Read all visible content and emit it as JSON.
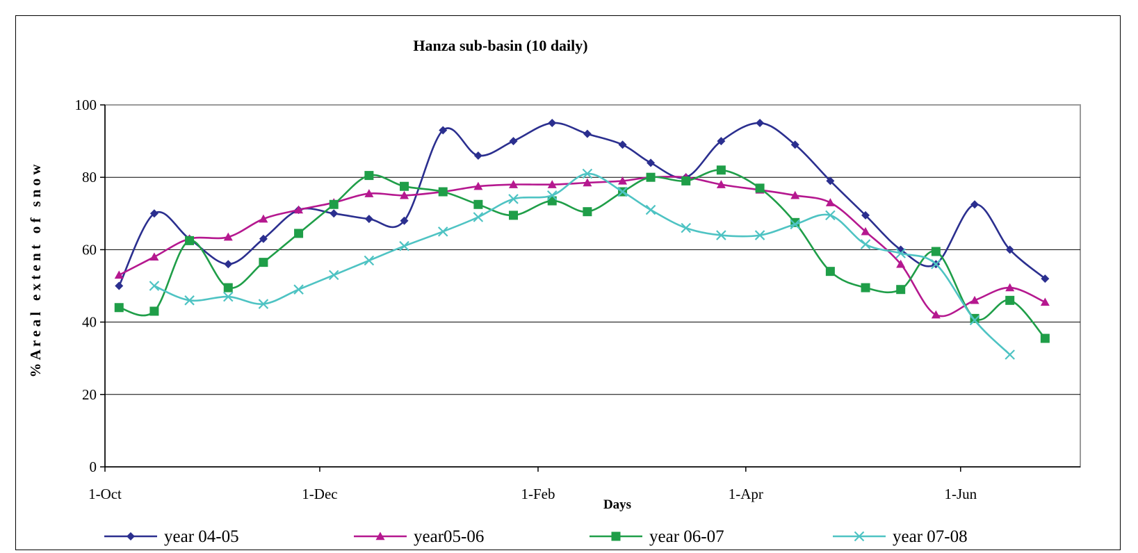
{
  "chart_data": {
    "type": "line",
    "title": "Hanza sub-basin (10 daily)",
    "xlabel": "Days",
    "ylabel": "% A r e a l   e x t e n t   o f   s n o w",
    "ylim": [
      0,
      100
    ],
    "yticks": [
      "0",
      "20",
      "40",
      "60",
      "80",
      "100"
    ],
    "xlim": [
      "2004-10-01",
      "2005-07-05"
    ],
    "xticks": [
      {
        "date": "2004-10-01",
        "label": "1-Oct"
      },
      {
        "date": "2004-12-01",
        "label": "1-Dec"
      },
      {
        "date": "2005-02-01",
        "label": "1-Feb"
      },
      {
        "date": "2005-04-01",
        "label": "1-Apr"
      },
      {
        "date": "2005-06-01",
        "label": "1-Jun"
      }
    ],
    "grid": "horizontal",
    "legend": "bottom",
    "series": [
      {
        "name": "year 04-05",
        "color": "#2B2F8F",
        "marker": "diamond",
        "x": [
          "2004-10-05",
          "2004-10-15",
          "2004-10-25",
          "2004-11-05",
          "2004-11-15",
          "2004-11-25",
          "2004-12-05",
          "2004-12-15",
          "2004-12-25",
          "2005-01-05",
          "2005-01-15",
          "2005-01-25",
          "2005-02-05",
          "2005-02-15",
          "2005-02-25",
          "2005-03-05",
          "2005-03-15",
          "2005-03-25",
          "2005-04-05",
          "2005-04-15",
          "2005-04-25",
          "2005-05-05",
          "2005-05-15",
          "2005-05-25",
          "2005-06-05",
          "2005-06-15",
          "2005-06-25"
        ],
        "y": [
          50,
          70,
          63,
          56,
          63,
          71,
          70,
          68.5,
          68,
          93,
          86,
          90,
          95,
          92,
          89,
          84,
          80,
          90,
          95,
          89,
          79,
          69.5,
          60,
          56,
          72.5,
          60,
          52
        ]
      },
      {
        "name": "year05-06",
        "color": "#B5188F",
        "marker": "triangle",
        "x": [
          "2004-10-05",
          "2004-10-15",
          "2004-10-25",
          "2004-11-05",
          "2004-11-15",
          "2004-11-25",
          "2004-12-05",
          "2004-12-15",
          "2004-12-25",
          "2005-01-05",
          "2005-01-15",
          "2005-01-25",
          "2005-02-05",
          "2005-02-15",
          "2005-02-25",
          "2005-03-05",
          "2005-03-15",
          "2005-03-25",
          "2005-04-05",
          "2005-04-15",
          "2005-04-25",
          "2005-05-05",
          "2005-05-15",
          "2005-05-25",
          "2005-06-05",
          "2005-06-15",
          "2005-06-25"
        ],
        "y": [
          53,
          58,
          63,
          63.5,
          68.5,
          71,
          73,
          75.5,
          75,
          76,
          77.5,
          78,
          78,
          78.5,
          79,
          80,
          80,
          78,
          76.5,
          75,
          73,
          65,
          56,
          42,
          46,
          49.5,
          45.5
        ]
      },
      {
        "name": "year 06-07",
        "color": "#1F9E48",
        "marker": "square",
        "x": [
          "2004-10-05",
          "2004-10-15",
          "2004-10-25",
          "2004-11-05",
          "2004-11-15",
          "2004-11-25",
          "2004-12-05",
          "2004-12-15",
          "2004-12-25",
          "2005-01-05",
          "2005-01-15",
          "2005-01-25",
          "2005-02-05",
          "2005-02-15",
          "2005-02-25",
          "2005-03-05",
          "2005-03-15",
          "2005-03-25",
          "2005-04-05",
          "2005-04-15",
          "2005-04-25",
          "2005-05-05",
          "2005-05-15",
          "2005-05-25",
          "2005-06-05",
          "2005-06-15",
          "2005-06-25"
        ],
        "y": [
          44,
          43,
          62.5,
          49.5,
          56.5,
          64.5,
          72.5,
          80.5,
          77.5,
          76,
          72.5,
          69.5,
          73.5,
          70.5,
          76,
          80,
          79,
          82,
          77,
          67.5,
          54,
          49.5,
          49,
          59.5,
          41,
          46,
          35.5
        ]
      },
      {
        "name": "year 07-08",
        "color": "#4EC3C3",
        "marker": "x",
        "x": [
          "2004-10-15",
          "2004-10-25",
          "2004-11-05",
          "2004-11-15",
          "2004-11-25",
          "2004-12-05",
          "2004-12-15",
          "2004-12-25",
          "2005-01-05",
          "2005-01-15",
          "2005-01-25",
          "2005-02-05",
          "2005-02-15",
          "2005-02-25",
          "2005-03-05",
          "2005-03-15",
          "2005-03-25",
          "2005-04-05",
          "2005-04-15",
          "2005-04-25",
          "2005-05-05",
          "2005-05-15",
          "2005-05-25",
          "2005-06-05",
          "2005-06-15"
        ],
        "y": [
          50,
          46,
          47,
          45,
          49,
          53,
          57,
          61,
          65,
          69,
          74,
          75,
          81,
          76,
          71,
          66,
          64,
          64,
          67,
          69.5,
          61.5,
          59,
          56,
          40.5,
          31
        ]
      }
    ]
  }
}
